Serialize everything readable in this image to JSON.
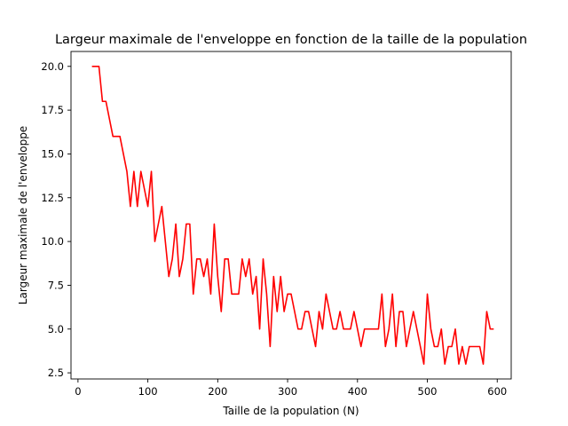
{
  "chart_data": {
    "type": "line",
    "title": "Largeur maximale de l'enveloppe en fonction de la taille de la population",
    "xlabel": "Taille de la population (N)",
    "ylabel": "Largeur maximale de l'enveloppe",
    "xlim": [
      -10,
      620
    ],
    "ylim": [
      2.15,
      20.85
    ],
    "x_ticks": [
      0,
      100,
      200,
      300,
      400,
      500,
      600
    ],
    "y_ticks": [
      2.5,
      5.0,
      7.5,
      10.0,
      12.5,
      15.0,
      17.5,
      20.0
    ],
    "x_tick_labels": [
      "0",
      "100",
      "200",
      "300",
      "400",
      "500",
      "600"
    ],
    "y_tick_labels": [
      "2.5",
      "5.0",
      "7.5",
      "10.0",
      "12.5",
      "15.0",
      "17.5",
      "20.0"
    ],
    "grid": false,
    "series": [
      {
        "color": "#ff0000",
        "x": [
          20,
          25,
          30,
          35,
          40,
          45,
          50,
          55,
          60,
          65,
          70,
          75,
          80,
          85,
          90,
          95,
          100,
          105,
          110,
          115,
          120,
          125,
          130,
          135,
          140,
          145,
          150,
          155,
          160,
          165,
          170,
          175,
          180,
          185,
          190,
          195,
          200,
          205,
          210,
          215,
          220,
          225,
          230,
          235,
          240,
          245,
          250,
          255,
          260,
          265,
          270,
          275,
          280,
          285,
          290,
          295,
          300,
          305,
          310,
          315,
          320,
          325,
          330,
          335,
          340,
          345,
          350,
          355,
          360,
          365,
          370,
          375,
          380,
          385,
          390,
          395,
          400,
          405,
          410,
          415,
          420,
          425,
          430,
          435,
          440,
          445,
          450,
          455,
          460,
          465,
          470,
          475,
          480,
          485,
          490,
          495,
          500,
          505,
          510,
          515,
          520,
          525,
          530,
          535,
          540,
          545,
          550,
          555,
          560,
          565,
          570,
          575,
          580,
          585,
          590,
          595
        ],
        "y": [
          20,
          20,
          20,
          18,
          18,
          17,
          16,
          16,
          16,
          15,
          14,
          12,
          14,
          12,
          14,
          13,
          12,
          14,
          10,
          11,
          12,
          10,
          8,
          9,
          11,
          8,
          9,
          11,
          11,
          7,
          9,
          9,
          8,
          9,
          7,
          11,
          8,
          6,
          9,
          9,
          7,
          7,
          7,
          9,
          8,
          9,
          7,
          8,
          5,
          9,
          7,
          4,
          8,
          6,
          8,
          6,
          7,
          7,
          6,
          5,
          5,
          6,
          6,
          5,
          4,
          6,
          5,
          7,
          6,
          5,
          5,
          6,
          5,
          5,
          5,
          6,
          5,
          4,
          5,
          5,
          5,
          5,
          5,
          7,
          4,
          5,
          7,
          4,
          6,
          6,
          4,
          5,
          6,
          5,
          4,
          3,
          7,
          5,
          4,
          4,
          5,
          3,
          4,
          4,
          5,
          3,
          4,
          3,
          4,
          4,
          4,
          4,
          3,
          6,
          5,
          5
        ]
      }
    ]
  }
}
